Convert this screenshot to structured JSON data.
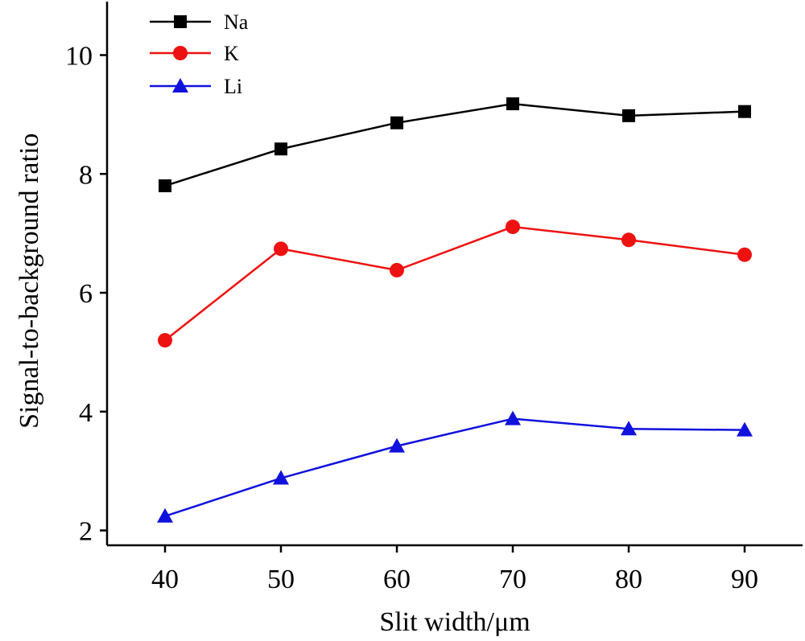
{
  "chart_data": {
    "type": "line",
    "xlabel": "Slit width/μm",
    "ylabel": "Signal-to-background ratio",
    "x": [
      40,
      50,
      60,
      70,
      80,
      90
    ],
    "xticks": [
      "40",
      "50",
      "60",
      "70",
      "80",
      "90"
    ],
    "yticks": [
      "2",
      "4",
      "6",
      "8",
      "10"
    ],
    "xlim": [
      35,
      95
    ],
    "ylim": [
      1.75,
      10.9
    ],
    "legend_position": "top-left",
    "grid": false,
    "series": [
      {
        "name": "Na",
        "color": "#000000",
        "marker": "square",
        "values": [
          7.8,
          8.42,
          8.86,
          9.18,
          8.98,
          9.05
        ]
      },
      {
        "name": "K",
        "color": "#ee1111",
        "marker": "circle",
        "values": [
          5.2,
          6.74,
          6.38,
          7.11,
          6.89,
          6.64
        ]
      },
      {
        "name": "Li",
        "color": "#1111dd",
        "marker": "triangle",
        "values": [
          2.24,
          2.88,
          3.42,
          3.88,
          3.71,
          3.69
        ]
      }
    ]
  }
}
